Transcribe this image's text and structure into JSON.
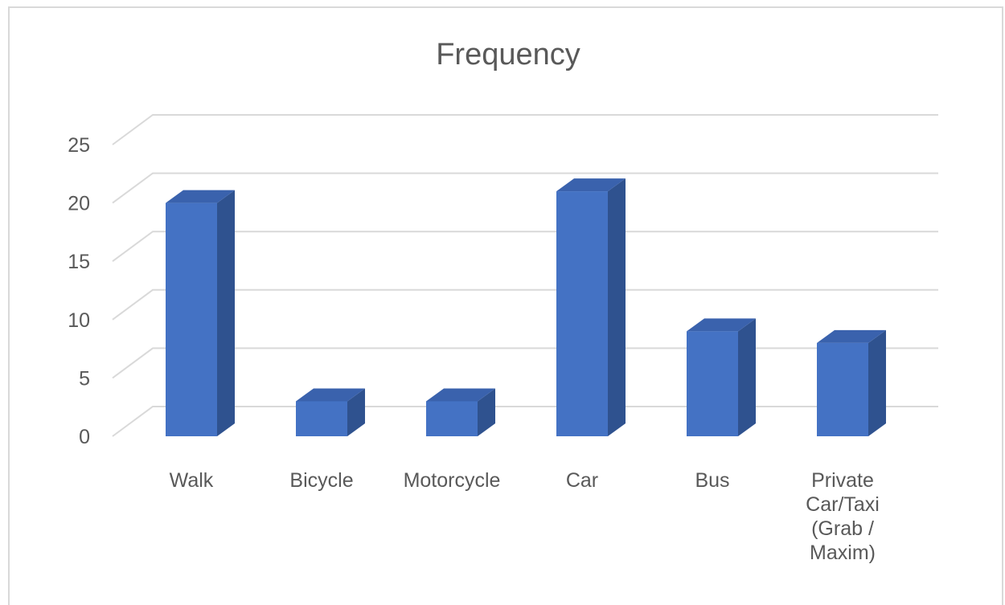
{
  "chart_data": {
    "type": "bar",
    "title": "Frequency",
    "categories": [
      "Walk",
      "Bicycle",
      "Motorcycle",
      "Car",
      "Bus",
      "Private Car/Taxi (Grab / Maxim)"
    ],
    "category_label_lines": [
      [
        "Walk"
      ],
      [
        "Bicycle"
      ],
      [
        "Motorcycle"
      ],
      [
        "Car"
      ],
      [
        "Bus"
      ],
      [
        "Private",
        "Car/Taxi",
        "(Grab /",
        "Maxim)"
      ]
    ],
    "series": [
      {
        "values": [
          20,
          3,
          3,
          21,
          9,
          8
        ]
      }
    ],
    "yticks": [
      0,
      5,
      10,
      15,
      20,
      25
    ],
    "ylim": [
      0,
      25
    ],
    "xlabel": "",
    "ylabel": "",
    "grid": true,
    "legend": "none",
    "style3d": true,
    "colors": {
      "bar_front": "#4472c4",
      "bar_side": "#2f528f",
      "bar_top": "#3a62ad",
      "grid": "#d9d9d9",
      "text": "#595959"
    }
  }
}
